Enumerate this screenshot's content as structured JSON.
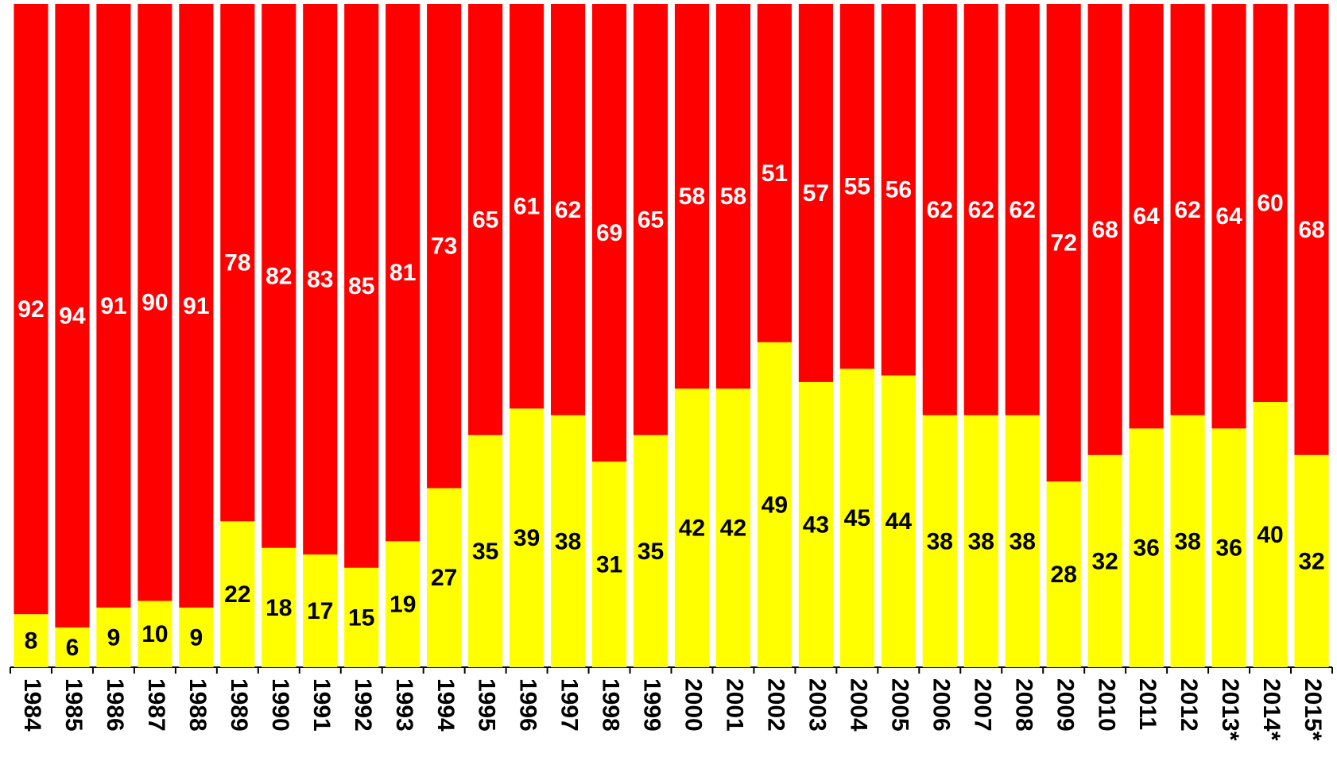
{
  "chart_data": {
    "type": "stacked_bar",
    "categories": [
      "1984",
      "1985",
      "1986",
      "1987",
      "1988",
      "1989",
      "1990",
      "1991",
      "1992",
      "1993",
      "1994",
      "1995",
      "1996",
      "1997",
      "1998",
      "1999",
      "2000",
      "2001",
      "2002",
      "2003",
      "2004",
      "2005",
      "2006",
      "2007",
      "2008",
      "2009",
      "2010",
      "2011",
      "2012",
      "2013*",
      "2014*",
      "2015*"
    ],
    "series": [
      {
        "color": "#ffff00",
        "values": [
          8,
          6,
          9,
          10,
          9,
          22,
          18,
          17,
          15,
          19,
          27,
          35,
          39,
          38,
          31,
          35,
          42,
          42,
          49,
          43,
          45,
          44,
          38,
          38,
          38,
          28,
          32,
          36,
          38,
          36,
          40,
          32
        ]
      },
      {
        "color": "#ff0000",
        "values": [
          92,
          94,
          91,
          90,
          91,
          78,
          82,
          83,
          85,
          81,
          73,
          65,
          61,
          62,
          69,
          65,
          58,
          58,
          51,
          57,
          55,
          56,
          62,
          62,
          62,
          72,
          68,
          64,
          62,
          64,
          60,
          68
        ]
      }
    ]
  }
}
